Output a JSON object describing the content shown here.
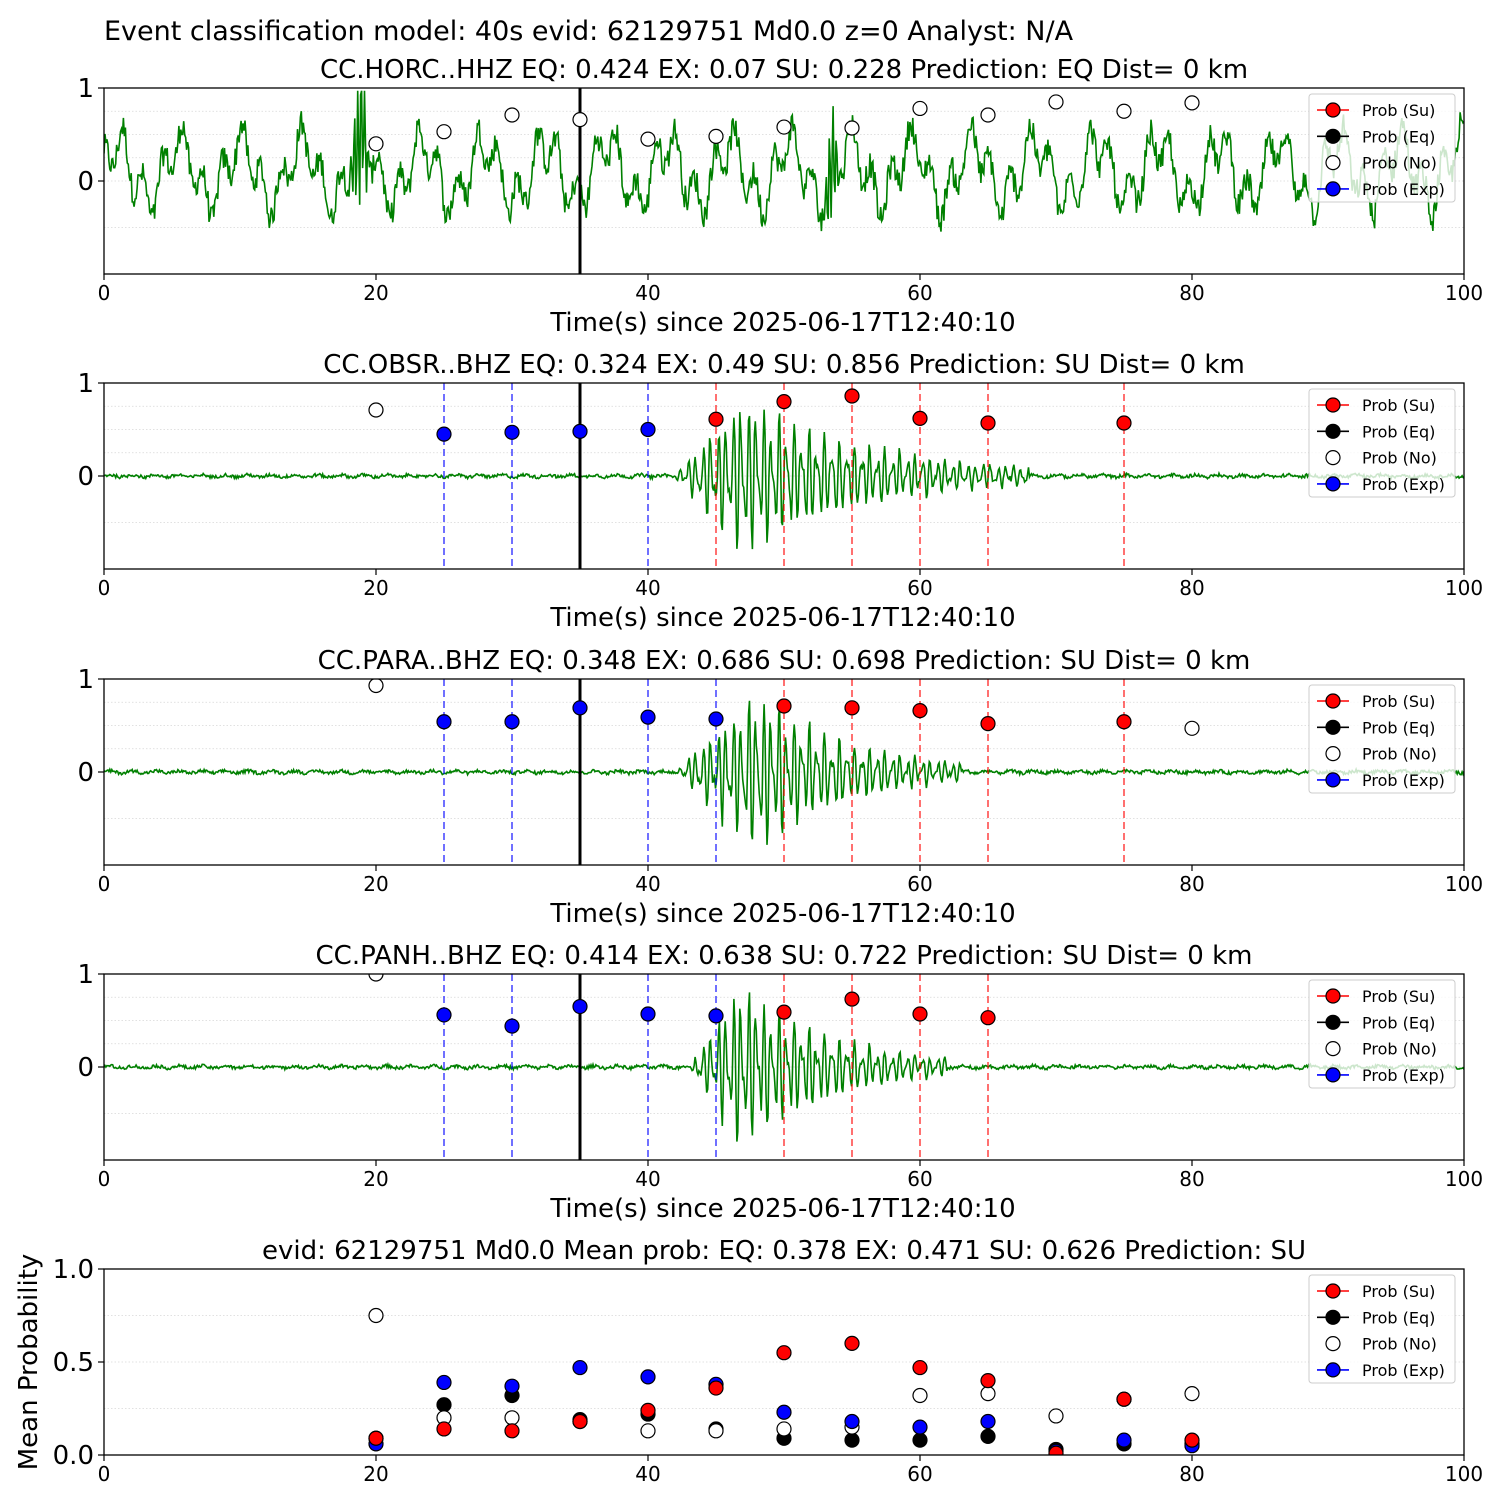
{
  "figure": {
    "title": "Event classification model: 40s evid: 62129751 Md0.0 z=0 Analyst: N/A"
  },
  "legend_labels": [
    "Prob (Su)",
    "Prob (Eq)",
    "Prob (No)",
    "Prob (Exp)"
  ],
  "colors": {
    "waveform": "#008000",
    "su": "#ff0000",
    "eq": "#000000",
    "no": "#ffffff",
    "exp": "#0000ff",
    "window_line": "#000000"
  },
  "chart_data": [
    {
      "type": "line",
      "title": "CC.HORC..HHZ   EQ: 0.424  EX: 0.07  SU: 0.228   Prediction: EQ    Dist= 0 km",
      "xlabel": "Time(s) since 2025-06-17T12:40:10",
      "ylabel": "",
      "xlim": [
        0,
        100
      ],
      "ylim": [
        -1,
        1
      ],
      "x_ticks": [
        0,
        20,
        40,
        60,
        80,
        100
      ],
      "y_ticks": [
        0,
        1
      ],
      "grid": "horizontal dotted",
      "legend": "top-right",
      "window_line_x": 35,
      "waveform": {
        "kind": "noise",
        "amplitude": 0.55,
        "period_s": 4.5,
        "spikes": [
          18.8,
          53.5
        ]
      },
      "points": {
        "no": {
          "x": [
            20,
            25,
            30,
            35,
            40,
            45,
            50,
            55,
            60,
            65,
            70,
            75,
            80
          ],
          "y": [
            0.4,
            0.53,
            0.71,
            0.66,
            0.45,
            0.48,
            0.58,
            0.57,
            0.78,
            0.71,
            0.85,
            0.75,
            0.84
          ]
        }
      },
      "vlines": {
        "su": [],
        "exp": []
      }
    },
    {
      "type": "line",
      "title": "CC.OBSR..BHZ   EQ: 0.324  EX: 0.49  SU: 0.856   Prediction: SU    Dist= 0 km",
      "xlabel": "Time(s) since 2025-06-17T12:40:10",
      "ylabel": "",
      "xlim": [
        0,
        100
      ],
      "ylim": [
        -1,
        1
      ],
      "x_ticks": [
        0,
        20,
        40,
        60,
        80,
        100
      ],
      "y_ticks": [
        0,
        1
      ],
      "grid": "horizontal dotted",
      "legend": "top-right",
      "window_line_x": 35,
      "waveform": {
        "kind": "burst",
        "start": 42,
        "peak": 47,
        "end": 68,
        "amplitude": 0.95
      },
      "points": {
        "no": {
          "x": [
            20
          ],
          "y": [
            0.71
          ]
        },
        "exp": {
          "x": [
            25,
            30,
            35,
            40
          ],
          "y": [
            0.45,
            0.47,
            0.48,
            0.5
          ]
        },
        "su": {
          "x": [
            45,
            50,
            55,
            60,
            65,
            75
          ],
          "y": [
            0.61,
            0.8,
            0.86,
            0.62,
            0.57,
            0.57
          ]
        }
      },
      "vlines": {
        "exp": [
          25,
          30,
          40
        ],
        "su": [
          45,
          50,
          55,
          60,
          65,
          75
        ]
      }
    },
    {
      "type": "line",
      "title": "CC.PARA..BHZ   EQ: 0.348  EX: 0.686  SU: 0.698   Prediction: SU    Dist= 0 km",
      "xlabel": "Time(s) since 2025-06-17T12:40:10",
      "ylabel": "",
      "xlim": [
        0,
        100
      ],
      "ylim": [
        -1,
        1
      ],
      "x_ticks": [
        0,
        20,
        40,
        60,
        80,
        100
      ],
      "y_ticks": [
        0,
        1
      ],
      "grid": "horizontal dotted",
      "legend": "top-right",
      "window_line_x": 35,
      "waveform": {
        "kind": "burst",
        "start": 42,
        "peak": 48,
        "end": 63,
        "amplitude": 0.98
      },
      "points": {
        "no": {
          "x": [
            20,
            80
          ],
          "y": [
            0.93,
            0.47
          ]
        },
        "exp": {
          "x": [
            25,
            30,
            35,
            40,
            45
          ],
          "y": [
            0.54,
            0.54,
            0.69,
            0.59,
            0.57
          ]
        },
        "su": {
          "x": [
            50,
            55,
            60,
            65,
            75
          ],
          "y": [
            0.71,
            0.69,
            0.66,
            0.52,
            0.54
          ]
        }
      },
      "vlines": {
        "exp": [
          25,
          30,
          40,
          45
        ],
        "su": [
          50,
          55,
          60,
          65,
          75
        ]
      }
    },
    {
      "type": "line",
      "title": "CC.PANH..BHZ   EQ: 0.414  EX: 0.638  SU: 0.722   Prediction: SU    Dist= 0 km",
      "xlabel": "Time(s) since 2025-06-17T12:40:10",
      "ylabel": "",
      "xlim": [
        0,
        100
      ],
      "ylim": [
        -1,
        1
      ],
      "x_ticks": [
        0,
        20,
        40,
        60,
        80,
        100
      ],
      "y_ticks": [
        0,
        1
      ],
      "grid": "horizontal dotted",
      "legend": "top-right",
      "window_line_x": 35,
      "waveform": {
        "kind": "burst",
        "start": 43,
        "peak": 47,
        "end": 62,
        "amplitude": 0.98
      },
      "points": {
        "no": {
          "x": [
            20
          ],
          "y": [
            1.0
          ]
        },
        "exp": {
          "x": [
            25,
            30,
            35,
            40,
            45
          ],
          "y": [
            0.56,
            0.44,
            0.65,
            0.57,
            0.55
          ]
        },
        "su": {
          "x": [
            50,
            55,
            60,
            65
          ],
          "y": [
            0.59,
            0.73,
            0.57,
            0.53
          ]
        }
      },
      "vlines": {
        "exp": [
          25,
          30,
          40,
          45
        ],
        "su": [
          50,
          55,
          60,
          65
        ]
      }
    },
    {
      "type": "scatter",
      "title": "evid: 62129751  Md0.0   Mean prob:   EQ: 0.378  EX: 0.471  SU: 0.626   Prediction: SU",
      "xlabel": "",
      "ylabel": "Mean Probability",
      "xlim": [
        0,
        100
      ],
      "ylim": [
        0,
        1
      ],
      "x_ticks": [
        0,
        20,
        40,
        60,
        80,
        100
      ],
      "y_ticks": [
        0.0,
        0.5,
        1.0
      ],
      "y_tick_labels": [
        "0.0",
        "0.5",
        "1.0"
      ],
      "grid": "horizontal dotted",
      "legend": "top-right",
      "x": [
        20,
        25,
        30,
        35,
        40,
        45,
        50,
        55,
        60,
        65,
        70,
        75,
        80
      ],
      "series": [
        {
          "name": "Prob (Eq)",
          "key": "eq",
          "values": [
            0.09,
            0.27,
            0.32,
            0.19,
            0.22,
            0.14,
            0.09,
            0.08,
            0.08,
            0.1,
            0.03,
            0.06,
            0.06
          ]
        },
        {
          "name": "Prob (No)",
          "key": "no",
          "values": [
            0.75,
            0.2,
            0.2,
            0.18,
            0.13,
            0.13,
            0.14,
            0.15,
            0.32,
            0.33,
            0.21,
            0.3,
            0.33
          ]
        },
        {
          "name": "Prob (Exp)",
          "key": "exp",
          "values": [
            0.06,
            0.39,
            0.37,
            0.47,
            0.42,
            0.38,
            0.23,
            0.18,
            0.15,
            0.18,
            0.02,
            0.08,
            0.05
          ]
        },
        {
          "name": "Prob (Su)",
          "key": "su",
          "values": [
            0.09,
            0.14,
            0.13,
            0.18,
            0.24,
            0.36,
            0.55,
            0.6,
            0.47,
            0.4,
            0.01,
            0.3,
            0.08
          ]
        }
      ]
    }
  ]
}
